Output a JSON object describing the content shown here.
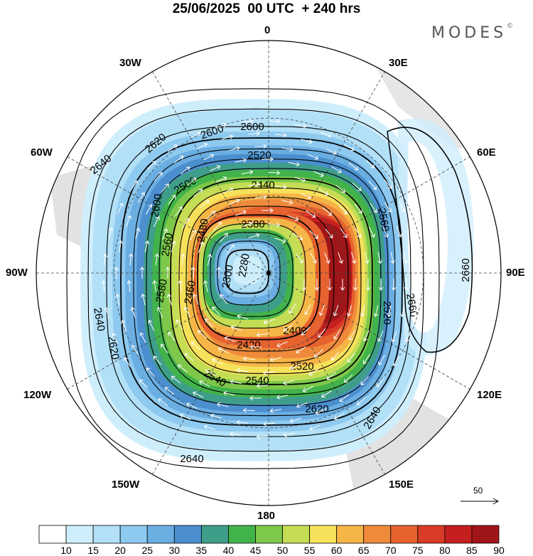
{
  "title": "25/06/2025  00 UTC  + 240 hrs",
  "brand": "MODES",
  "brand_mark": "©",
  "longitude_labels": {
    "top": "0",
    "bottom": "180",
    "left": "90W",
    "right": "90E",
    "upper_left_30": "30W",
    "upper_right_30": "30E",
    "upper_left_60": "60W",
    "upper_right_60": "60E",
    "lower_left_120": "120W",
    "lower_right_120": "120E",
    "lower_left_150": "150W",
    "lower_right_150": "150E"
  },
  "wind_reference": {
    "value": "50"
  },
  "contour_labels": [
    "2280",
    "2300",
    "2380",
    "2400",
    "2420",
    "2440",
    "2460",
    "2480",
    "2500",
    "2520",
    "2540",
    "2560",
    "2580",
    "2600",
    "2620",
    "2640",
    "2660"
  ],
  "colorbar": {
    "ticks": [
      "10",
      "15",
      "20",
      "25",
      "30",
      "35",
      "40",
      "45",
      "50",
      "55",
      "60",
      "65",
      "70",
      "75",
      "80",
      "85",
      "90"
    ],
    "colors": [
      "#ffffff",
      "#cfeefc",
      "#b2e0f7",
      "#8ec9ef",
      "#6aaee2",
      "#4b8fcf",
      "#3f9e8a",
      "#42b24b",
      "#7dc84a",
      "#c4dd55",
      "#f6e15a",
      "#f6b547",
      "#ef8a3b",
      "#e6622f",
      "#d83b27",
      "#c4201f",
      "#a01518"
    ]
  },
  "colors": {
    "coast": "#777777",
    "land": "#dddddd",
    "grid": "#333333",
    "contour": "#000000",
    "vector": "#ffffff"
  }
}
